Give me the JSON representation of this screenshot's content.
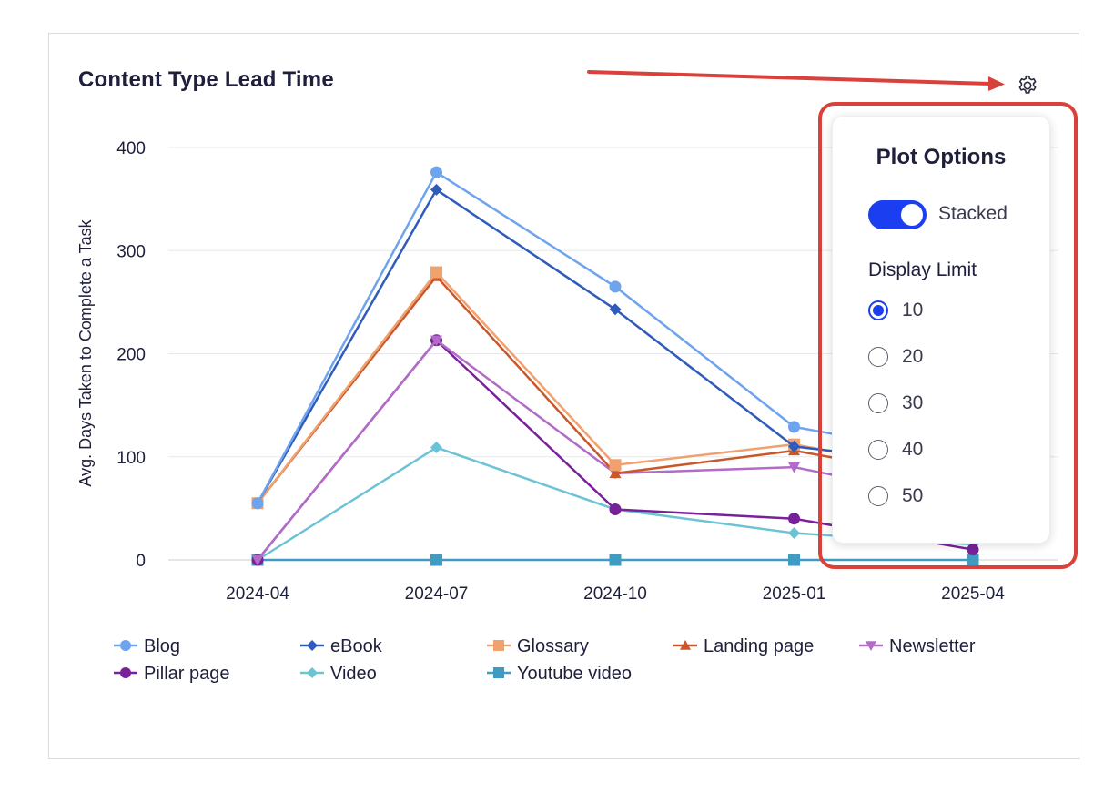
{
  "card": {
    "title": "Content Type Lead Time"
  },
  "icons": {
    "settings": "gear-icon"
  },
  "plot_options": {
    "title": "Plot Options",
    "stacked_label": "Stacked",
    "stacked_on": true,
    "display_limit_label": "Display Limit",
    "display_limit_options": [
      "10",
      "20",
      "30",
      "40",
      "50"
    ],
    "display_limit_selected": "10"
  },
  "colors": {
    "accent": "#1a3ef0",
    "annotation": "#d9413a"
  },
  "chart_data": {
    "type": "line",
    "title": "",
    "xlabel": "",
    "ylabel": "Avg. Days Taken to Complete a Task",
    "x": [
      "2024-04",
      "2024-07",
      "2024-10",
      "2025-01",
      "2025-04"
    ],
    "ylim": [
      0,
      400
    ],
    "yticks": [
      0,
      100,
      200,
      300,
      400
    ],
    "grid": true,
    "legend_position": "bottom",
    "series": [
      {
        "name": "Blog",
        "color": "#6ea3ee",
        "marker": "circle",
        "values": [
          55,
          376,
          265,
          129,
          98
        ]
      },
      {
        "name": "eBook",
        "color": "#2f5cba",
        "marker": "diamond",
        "values": [
          55,
          359,
          243,
          110,
          90
        ]
      },
      {
        "name": "Glossary",
        "color": "#f0a16d",
        "marker": "square",
        "values": [
          55,
          279,
          92,
          112,
          80
        ]
      },
      {
        "name": "Landing page",
        "color": "#c8582c",
        "marker": "triangle-up",
        "values": [
          55,
          275,
          84,
          106,
          75
        ]
      },
      {
        "name": "Newsletter",
        "color": "#b26cc8",
        "marker": "triangle-down",
        "values": [
          0,
          213,
          84,
          90,
          55
        ]
      },
      {
        "name": "Pillar page",
        "color": "#78219a",
        "marker": "circle",
        "values": [
          0,
          213,
          49,
          40,
          10
        ]
      },
      {
        "name": "Video",
        "color": "#6cc3d6",
        "marker": "diamond",
        "values": [
          0,
          109,
          49,
          26,
          15
        ]
      },
      {
        "name": "Youtube video",
        "color": "#3f9bc1",
        "marker": "square",
        "values": [
          0,
          0,
          0,
          0,
          0
        ]
      }
    ]
  }
}
